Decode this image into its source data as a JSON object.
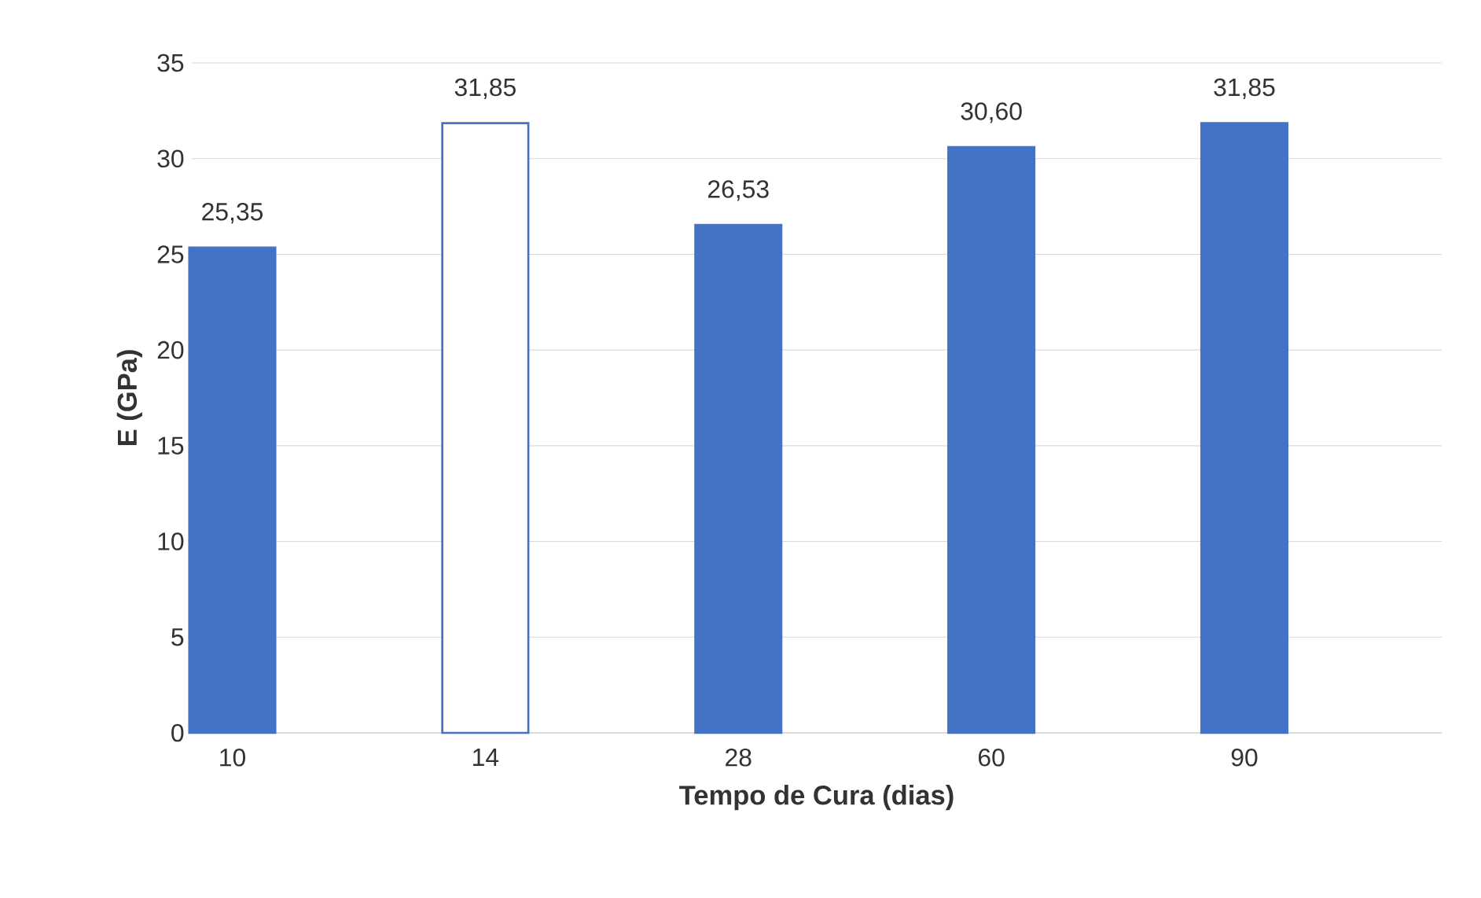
{
  "chart_data": {
    "type": "bar",
    "xlabel": "Tempo de Cura (dias)",
    "ylabel": "E (GPa)",
    "categories": [
      "10",
      "14",
      "28",
      "60",
      "90"
    ],
    "values": [
      25.35,
      31.85,
      26.53,
      30.6,
      31.85
    ],
    "value_labels": [
      "25,35",
      "31,85",
      "26,53",
      "30,60",
      "31,85"
    ],
    "color": "#4472c4",
    "colors": [
      "#4472c4",
      "#ffffff",
      "#4472c4",
      "#4472c4",
      "#4472c4"
    ],
    "ylim": [
      0,
      35
    ],
    "yticks": [
      0,
      5,
      10,
      15,
      20,
      25,
      30,
      35
    ],
    "grid": "y"
  }
}
